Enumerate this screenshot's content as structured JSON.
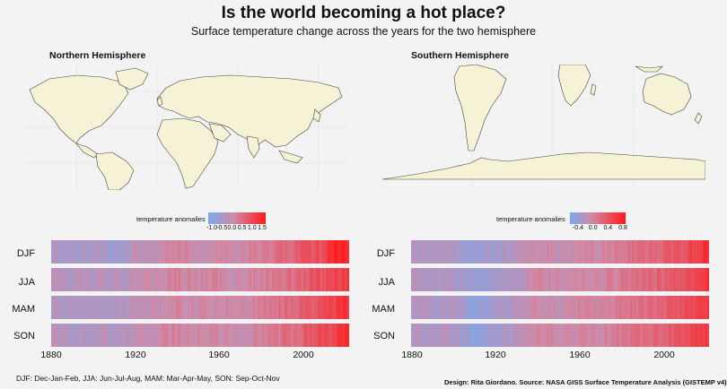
{
  "title": "Is the world becoming a hot place?",
  "subtitle": "Surface temperature change across the years for the two hemisphere",
  "footnote": "DJF: Dec-Jan-Feb, JJA: Jun-Jul-Aug, MAM: Mar-Apr-May, SON: Sep-Oct-Nov",
  "credit": "Design: Rita Giordano.  Source: NASA GISS Surface Temperature Analysis (GISTEMP v4)",
  "colors": {
    "cold": "#7aaaf0",
    "mid": "#d08aa6",
    "hot": "#ff1a1a",
    "land": "#f5f2d5",
    "border": "#444444"
  },
  "chart_data": [
    {
      "type": "heatmap",
      "title": "Northern Hemisphere",
      "legend_title": "temperature anomalies",
      "legend_ticks": [
        "-1.0",
        "-0.5",
        "0.0",
        "0.5",
        "1.0",
        "1.5"
      ],
      "color_range": [
        -1.2,
        1.7
      ],
      "rows": [
        "DJF",
        "JJA",
        "MAM",
        "SON"
      ],
      "x_ticks": [
        "1880",
        "1920",
        "1960",
        "2000"
      ],
      "xlim": [
        1880,
        2022
      ],
      "series": [
        {
          "name": "DJF",
          "anchors": [
            [
              1880,
              -0.5
            ],
            [
              1900,
              -0.5
            ],
            [
              1910,
              -0.6
            ],
            [
              1920,
              -0.3
            ],
            [
              1930,
              -0.15
            ],
            [
              1940,
              0.1
            ],
            [
              1950,
              -0.2
            ],
            [
              1960,
              0.0
            ],
            [
              1970,
              -0.15
            ],
            [
              1980,
              0.2
            ],
            [
              1990,
              0.45
            ],
            [
              2000,
              0.75
            ],
            [
              2010,
              0.95
            ],
            [
              2016,
              1.6
            ],
            [
              2022,
              1.3
            ]
          ]
        },
        {
          "name": "JJA",
          "anchors": [
            [
              1880,
              -0.3
            ],
            [
              1900,
              -0.35
            ],
            [
              1910,
              -0.4
            ],
            [
              1920,
              -0.25
            ],
            [
              1930,
              -0.1
            ],
            [
              1940,
              0.1
            ],
            [
              1950,
              0.0
            ],
            [
              1960,
              0.05
            ],
            [
              1970,
              -0.05
            ],
            [
              1980,
              0.1
            ],
            [
              1990,
              0.35
            ],
            [
              2000,
              0.6
            ],
            [
              2010,
              0.9
            ],
            [
              2022,
              1.2
            ]
          ]
        },
        {
          "name": "MAM",
          "anchors": [
            [
              1880,
              -0.4
            ],
            [
              1900,
              -0.45
            ],
            [
              1910,
              -0.5
            ],
            [
              1920,
              -0.25
            ],
            [
              1930,
              -0.15
            ],
            [
              1940,
              0.05
            ],
            [
              1950,
              -0.1
            ],
            [
              1960,
              0.0
            ],
            [
              1970,
              -0.1
            ],
            [
              1980,
              0.15
            ],
            [
              1990,
              0.4
            ],
            [
              2000,
              0.65
            ],
            [
              2010,
              0.95
            ],
            [
              2022,
              1.3
            ]
          ]
        },
        {
          "name": "SON",
          "anchors": [
            [
              1880,
              -0.35
            ],
            [
              1900,
              -0.4
            ],
            [
              1910,
              -0.45
            ],
            [
              1920,
              -0.2
            ],
            [
              1930,
              -0.05
            ],
            [
              1940,
              0.15
            ],
            [
              1950,
              0.0
            ],
            [
              1960,
              0.0
            ],
            [
              1970,
              -0.1
            ],
            [
              1980,
              0.1
            ],
            [
              1990,
              0.35
            ],
            [
              2000,
              0.65
            ],
            [
              2010,
              0.95
            ],
            [
              2022,
              1.3
            ]
          ]
        }
      ]
    },
    {
      "type": "heatmap",
      "title": "Southern Hemisphere",
      "legend_title": "temperature anomalies",
      "legend_ticks": [
        "-0.4",
        "0.0",
        "0.4",
        "0.8"
      ],
      "color_range": [
        -0.6,
        1.0
      ],
      "rows": [
        "DJF",
        "JJA",
        "MAM",
        "SON"
      ],
      "x_ticks": [
        "1880",
        "1920",
        "1960",
        "2000"
      ],
      "xlim": [
        1880,
        2022
      ],
      "series": [
        {
          "name": "DJF",
          "anchors": [
            [
              1880,
              -0.2
            ],
            [
              1900,
              -0.25
            ],
            [
              1910,
              -0.4
            ],
            [
              1920,
              -0.3
            ],
            [
              1930,
              -0.2
            ],
            [
              1940,
              0.0
            ],
            [
              1950,
              -0.1
            ],
            [
              1960,
              0.0
            ],
            [
              1970,
              0.0
            ],
            [
              1980,
              0.15
            ],
            [
              1990,
              0.25
            ],
            [
              2000,
              0.35
            ],
            [
              2010,
              0.5
            ],
            [
              2022,
              0.8
            ]
          ]
        },
        {
          "name": "JJA",
          "anchors": [
            [
              1880,
              -0.2
            ],
            [
              1900,
              -0.25
            ],
            [
              1910,
              -0.4
            ],
            [
              1920,
              -0.3
            ],
            [
              1930,
              -0.2
            ],
            [
              1940,
              0.05
            ],
            [
              1950,
              -0.05
            ],
            [
              1960,
              0.0
            ],
            [
              1970,
              0.0
            ],
            [
              1980,
              0.15
            ],
            [
              1990,
              0.25
            ],
            [
              2000,
              0.35
            ],
            [
              2010,
              0.5
            ],
            [
              2022,
              0.75
            ]
          ]
        },
        {
          "name": "MAM",
          "anchors": [
            [
              1880,
              -0.2
            ],
            [
              1900,
              -0.25
            ],
            [
              1910,
              -0.4
            ],
            [
              1920,
              -0.3
            ],
            [
              1930,
              -0.2
            ],
            [
              1940,
              0.0
            ],
            [
              1950,
              -0.1
            ],
            [
              1960,
              0.0
            ],
            [
              1970,
              0.0
            ],
            [
              1980,
              0.15
            ],
            [
              1990,
              0.25
            ],
            [
              2000,
              0.35
            ],
            [
              2010,
              0.5
            ],
            [
              2022,
              0.75
            ]
          ]
        },
        {
          "name": "SON",
          "anchors": [
            [
              1880,
              -0.2
            ],
            [
              1900,
              -0.25
            ],
            [
              1910,
              -0.4
            ],
            [
              1920,
              -0.3
            ],
            [
              1930,
              -0.2
            ],
            [
              1940,
              0.05
            ],
            [
              1950,
              -0.05
            ],
            [
              1960,
              0.0
            ],
            [
              1970,
              0.0
            ],
            [
              1980,
              0.15
            ],
            [
              1990,
              0.25
            ],
            [
              2000,
              0.35
            ],
            [
              2010,
              0.5
            ],
            [
              2022,
              0.75
            ]
          ]
        }
      ]
    }
  ]
}
